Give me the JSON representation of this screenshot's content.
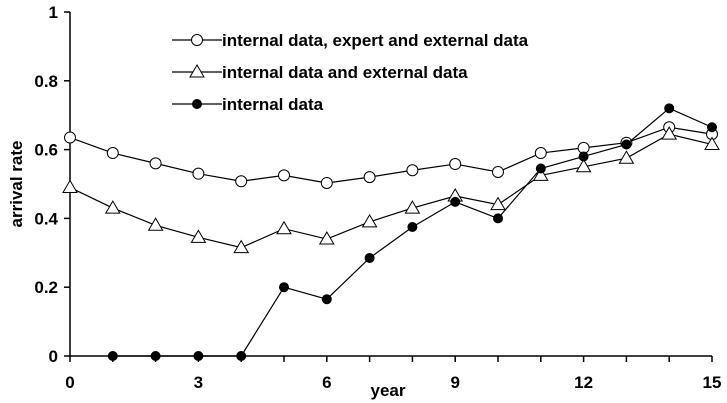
{
  "chart_data": {
    "type": "line",
    "xlabel": "year",
    "ylabel": "arrival rate",
    "xlim": [
      0,
      15
    ],
    "ylim": [
      0,
      1
    ],
    "x_ticks": [
      "0",
      "3",
      "6",
      "9",
      "12",
      "15"
    ],
    "y_ticks": [
      "0",
      "0.2",
      "0.4",
      "0.6",
      "0.8",
      "1"
    ],
    "grid": false,
    "legend_position": "top-center",
    "series": [
      {
        "name": "internal data, expert and external data",
        "marker": "open-circle",
        "x": [
          0,
          1,
          2,
          3,
          4,
          5,
          6,
          7,
          8,
          9,
          10,
          11,
          12,
          13,
          14,
          15
        ],
        "values": [
          0.635,
          0.59,
          0.56,
          0.53,
          0.508,
          0.525,
          0.503,
          0.52,
          0.54,
          0.558,
          0.535,
          0.59,
          0.605,
          0.62,
          0.665,
          0.645
        ]
      },
      {
        "name": "internal data and external data",
        "marker": "open-triangle",
        "x": [
          0,
          1,
          2,
          3,
          4,
          5,
          6,
          7,
          8,
          9,
          10,
          11,
          12,
          13,
          14,
          15
        ],
        "values": [
          0.49,
          0.43,
          0.38,
          0.345,
          0.315,
          0.37,
          0.34,
          0.39,
          0.43,
          0.465,
          0.44,
          0.525,
          0.55,
          0.575,
          0.645,
          0.615
        ]
      },
      {
        "name": "internal data",
        "marker": "filled-circle",
        "x": [
          1,
          2,
          3,
          4,
          5,
          6,
          7,
          8,
          9,
          10,
          11,
          12,
          13,
          14,
          15
        ],
        "values": [
          0,
          0,
          0,
          0,
          0.2,
          0.165,
          0.285,
          0.375,
          0.448,
          0.4,
          0.545,
          0.58,
          0.615,
          0.72,
          0.665
        ]
      }
    ]
  }
}
